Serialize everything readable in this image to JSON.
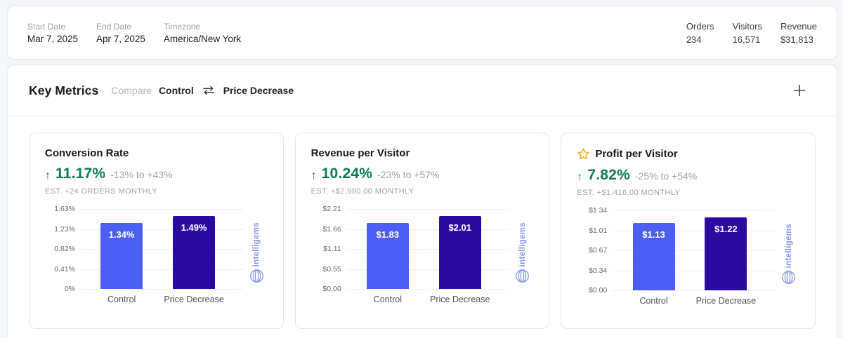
{
  "topbar": {
    "fields": [
      {
        "name": "start-date",
        "label": "Start Date",
        "value": "Mar 7, 2025"
      },
      {
        "name": "end-date",
        "label": "End Date",
        "value": "Apr 7, 2025"
      },
      {
        "name": "timezone",
        "label": "Timezone",
        "value": "America/New York"
      }
    ],
    "stats": [
      {
        "name": "orders",
        "label": "Orders",
        "value": "234"
      },
      {
        "name": "visitors",
        "label": "Visitors",
        "value": "16,571"
      },
      {
        "name": "revenue",
        "label": "Revenue",
        "value": "$31,813"
      }
    ]
  },
  "key_metrics": {
    "title": "Key Metrics",
    "compare_label": "Compare",
    "variant_a": "Control",
    "variant_b": "Price Decrease"
  },
  "watermark_text": "intelligems",
  "colors": {
    "control_bar": "#4d5ef3",
    "variant_bar": "#2c0ca0",
    "positive_green": "#0d7a55",
    "star_gold": "#f2b01e",
    "watermark_blue": "#8595f4"
  },
  "chart_data": [
    {
      "type": "bar",
      "title": "Conversion Rate",
      "starred": false,
      "change": "11.17%",
      "change_direction": "up",
      "range": "-13% to +43%",
      "estimate": "EST. +24 ORDERS MONTHLY",
      "categories": [
        "Control",
        "Price Decrease"
      ],
      "values": [
        1.34,
        1.49
      ],
      "bar_labels": [
        "1.34%",
        "1.49%"
      ],
      "yticks": [
        "1.63%",
        "1.23%",
        "0.82%",
        "0.41%",
        "0%"
      ],
      "ylim": [
        0,
        1.63
      ],
      "grid": "dashed-horizontal",
      "legend": "none"
    },
    {
      "type": "bar",
      "title": "Revenue per Visitor",
      "starred": false,
      "change": "10.24%",
      "change_direction": "up",
      "range": "-23% to +57%",
      "estimate": "EST. +$2,990.00 MONTHLY",
      "categories": [
        "Control",
        "Price Decrease"
      ],
      "values": [
        1.83,
        2.01
      ],
      "bar_labels": [
        "$1.83",
        "$2.01"
      ],
      "yticks": [
        "$2.21",
        "$1.66",
        "$1.11",
        "$0.55",
        "$0.00"
      ],
      "ylim": [
        0,
        2.21
      ],
      "grid": "dashed-horizontal",
      "legend": "none"
    },
    {
      "type": "bar",
      "title": "Profit per Visitor",
      "starred": true,
      "change": "7.82%",
      "change_direction": "up",
      "range": "-25% to +54%",
      "estimate": "EST. +$1,416.00 MONTHLY",
      "categories": [
        "Control",
        "Price Decrease"
      ],
      "values": [
        1.13,
        1.22
      ],
      "bar_labels": [
        "$1.13",
        "$1.22"
      ],
      "yticks": [
        "$1.34",
        "$1.01",
        "$0.67",
        "$0.34",
        "$0.00"
      ],
      "ylim": [
        0,
        1.34
      ],
      "grid": "dashed-horizontal",
      "legend": "none"
    }
  ]
}
